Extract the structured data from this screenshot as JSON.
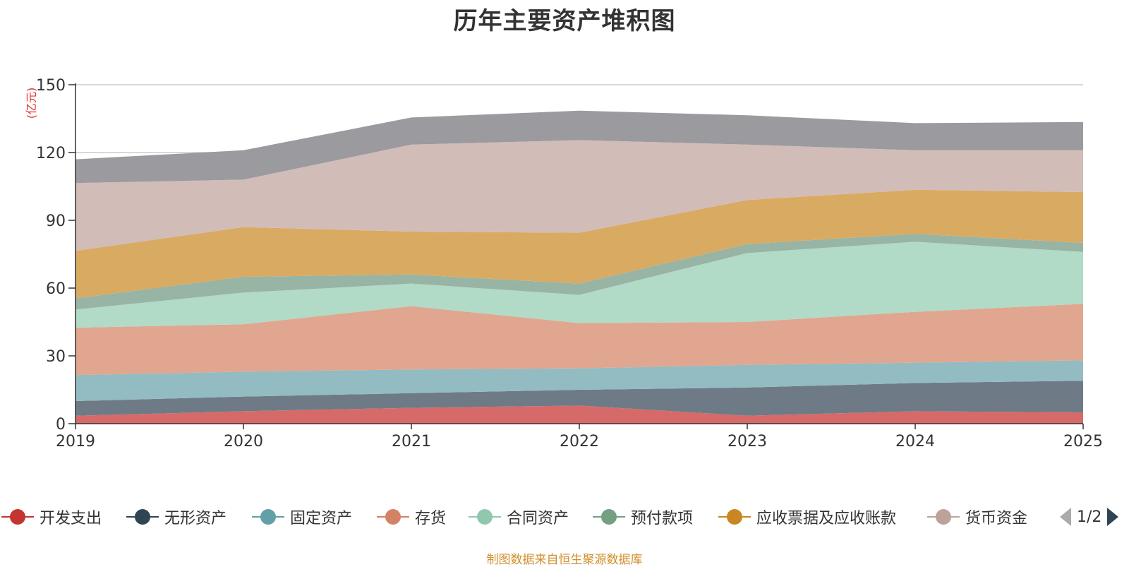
{
  "colors": {
    "area": [
      "#d66a69",
      "#6e7b87",
      "#93bbc2",
      "#e0a690",
      "#b1dac7",
      "#98b4a4",
      "#d9aa62",
      "#d1bcb7",
      "#9a9a9f"
    ],
    "legend": [
      "#c23531",
      "#2f4554",
      "#61a0a8",
      "#d48265",
      "#91c7ae",
      "#749f83",
      "#ca8622",
      "#bda29a"
    ],
    "source": "#d08e2a",
    "ylabel": "#e03030"
  },
  "chart_data": {
    "type": "area",
    "stacked": true,
    "title": "历年主要资产堆积图",
    "ylabel": "(亿元)",
    "xlabel": "",
    "ylim": [
      0,
      150
    ],
    "yticks": [
      0,
      30,
      60,
      90,
      120,
      150
    ],
    "categories": [
      "2019",
      "2020",
      "2021",
      "2022",
      "2023",
      "2024",
      "2025"
    ],
    "series": [
      {
        "name": "开发支出",
        "values": [
          3.5,
          5.5,
          7,
          8,
          3.5,
          5.5,
          5
        ]
      },
      {
        "name": "无形资产",
        "values": [
          6.5,
          6.5,
          6.5,
          7,
          12.5,
          12.5,
          14
        ]
      },
      {
        "name": "固定资产",
        "values": [
          11.5,
          11,
          10.5,
          9.5,
          10,
          9,
          9
        ]
      },
      {
        "name": "存货",
        "values": [
          21,
          21,
          28,
          20,
          19,
          22.5,
          25
        ]
      },
      {
        "name": "合同资产",
        "values": [
          8,
          14,
          10,
          12.5,
          30.5,
          31,
          23
        ]
      },
      {
        "name": "预付款项",
        "values": [
          5,
          7,
          4,
          5,
          4,
          3.5,
          4
        ]
      },
      {
        "name": "应收票据及应收账款",
        "values": [
          21,
          22,
          19,
          22.5,
          19.5,
          19.5,
          22.5
        ]
      },
      {
        "name": "货币资金",
        "values": [
          30,
          21,
          38.5,
          41,
          24.5,
          17.5,
          18.5
        ]
      },
      {
        "name": "",
        "values": [
          10.5,
          13,
          12,
          13,
          13,
          12,
          12.5
        ]
      }
    ],
    "legend_position": "bottom"
  },
  "legend_items": [
    "开发支出",
    "无形资产",
    "固定资产",
    "存货",
    "合同资产",
    "预付款项",
    "应收票据及应收账款",
    "货币资金"
  ],
  "pager": {
    "label": "1/2"
  },
  "footer": {
    "source": "制图数据来自恒生聚源数据库"
  }
}
